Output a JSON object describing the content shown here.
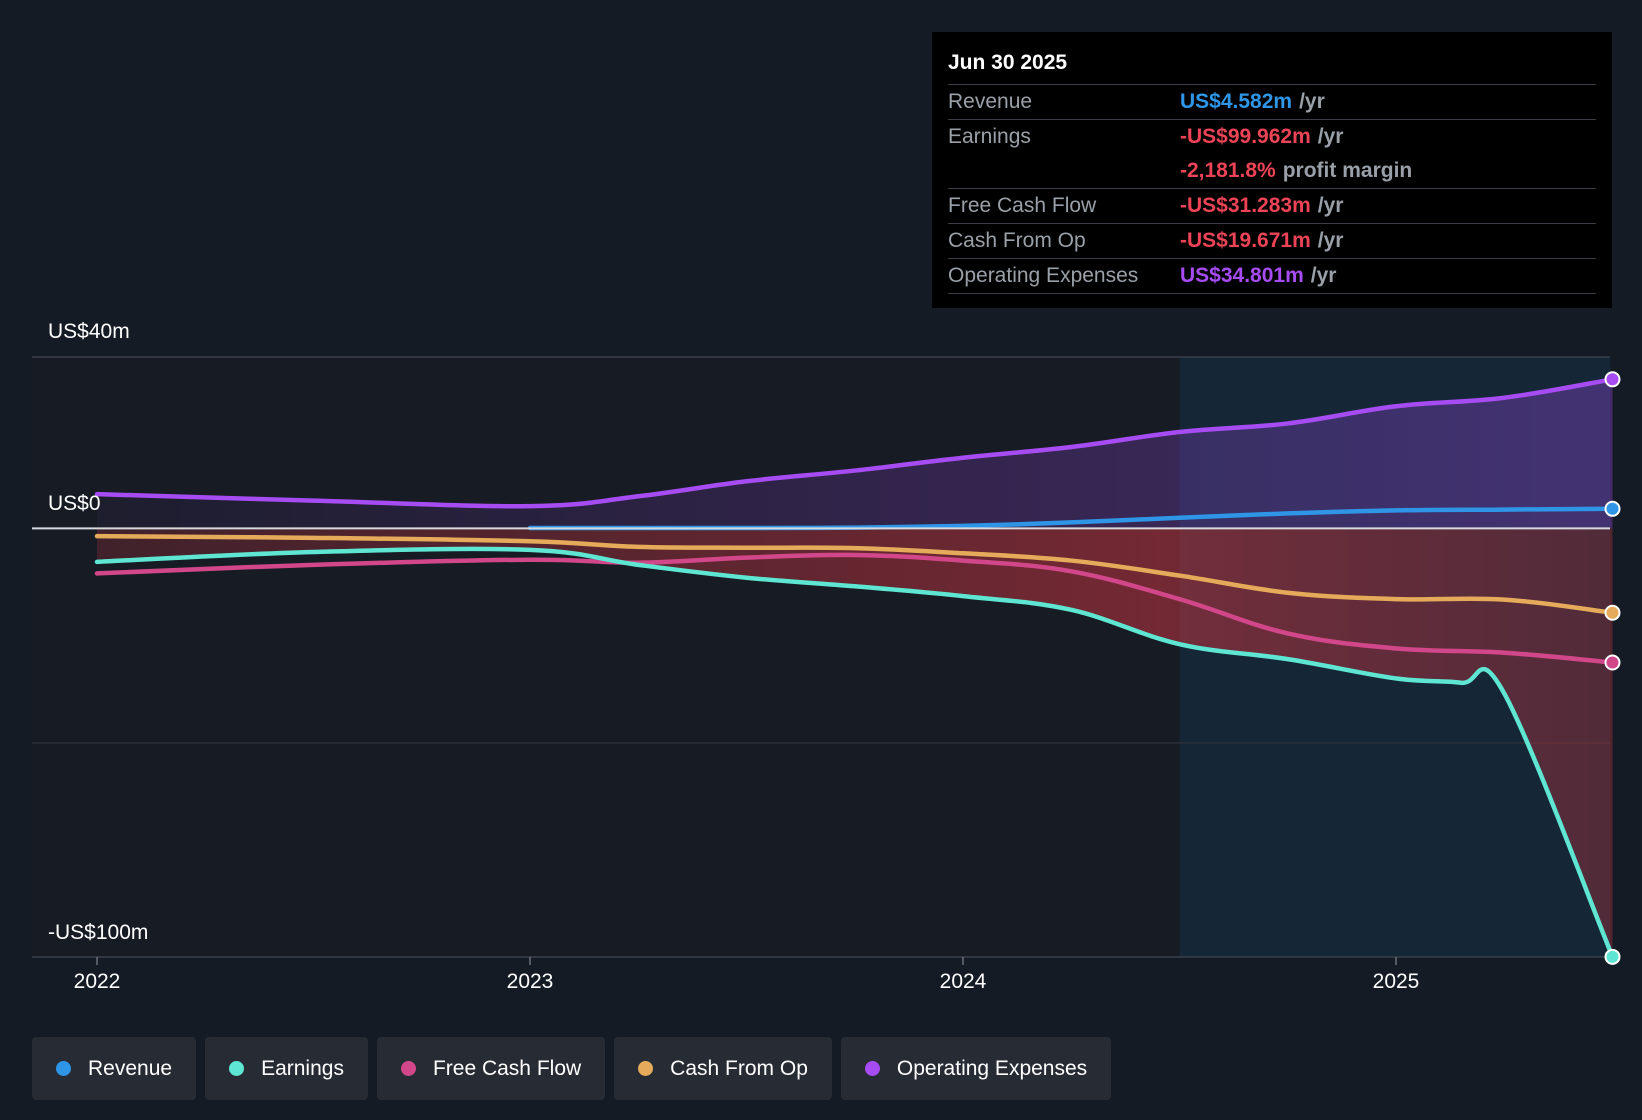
{
  "tooltip": {
    "date": "Jun 30 2025",
    "rows": {
      "revenue": {
        "label": "Revenue",
        "value": "US$4.582m",
        "unit": "/yr"
      },
      "earnings": {
        "label": "Earnings",
        "value": "-US$99.962m",
        "unit": "/yr"
      },
      "margin": {
        "value": "-2,181.8%",
        "unit": "profit margin"
      },
      "fcf": {
        "label": "Free Cash Flow",
        "value": "-US$31.283m",
        "unit": "/yr"
      },
      "cfo": {
        "label": "Cash From Op",
        "value": "-US$19.671m",
        "unit": "/yr"
      },
      "opex": {
        "label": "Operating Expenses",
        "value": "US$34.801m",
        "unit": "/yr"
      }
    }
  },
  "legend": [
    {
      "label": "Revenue",
      "color": "#2f95e6"
    },
    {
      "label": "Earnings",
      "color": "#5ee6d2"
    },
    {
      "label": "Free Cash Flow",
      "color": "#d2478a"
    },
    {
      "label": "Cash From Op",
      "color": "#e5ab5a"
    },
    {
      "label": "Operating Expenses",
      "color": "#a64cf2"
    }
  ],
  "chart_data": {
    "type": "line",
    "title": "",
    "xlabel": "",
    "ylabel": "",
    "ylim": [
      -100,
      40
    ],
    "y_tick_labels": {
      "top": "US$40m",
      "zero": "US$0",
      "bottom": "-US$100m"
    },
    "x_tick_labels": [
      "2022",
      "2023",
      "2024",
      "2025"
    ],
    "x_range": [
      2021.8,
      2025.5
    ],
    "past_data_start": 2024.5,
    "series": [
      {
        "name": "Operating Expenses",
        "color": "#a64cf2",
        "x": [
          2022.0,
          2022.5,
          2023.0,
          2023.25,
          2023.5,
          2023.75,
          2024.0,
          2024.25,
          2024.5,
          2024.75,
          2025.0,
          2025.25,
          2025.5
        ],
        "values": [
          8,
          6.5,
          5.2,
          7.5,
          11,
          13.5,
          16.5,
          19,
          22.5,
          24.5,
          28.5,
          30.5,
          34.8
        ]
      },
      {
        "name": "Revenue",
        "color": "#2f95e6",
        "x": [
          2023.0,
          2023.5,
          2023.75,
          2024.0,
          2024.25,
          2024.5,
          2024.75,
          2025.0,
          2025.25,
          2025.5
        ],
        "values": [
          0.1,
          0.1,
          0.2,
          0.6,
          1.4,
          2.5,
          3.5,
          4.2,
          4.4,
          4.582
        ]
      },
      {
        "name": "Cash From Op",
        "color": "#e5ab5a",
        "x": [
          2022.0,
          2022.5,
          2023.0,
          2023.25,
          2023.5,
          2023.75,
          2024.0,
          2024.25,
          2024.5,
          2024.75,
          2025.0,
          2025.25,
          2025.5
        ],
        "values": [
          -1.8,
          -2.2,
          -3,
          -4.3,
          -4.5,
          -4.6,
          -5.8,
          -7.5,
          -11,
          -15,
          -16.5,
          -16.6,
          -19.671
        ]
      },
      {
        "name": "Free Cash Flow",
        "color": "#d2478a",
        "x": [
          2022.0,
          2022.5,
          2023.0,
          2023.25,
          2023.5,
          2023.75,
          2024.0,
          2024.25,
          2024.5,
          2024.75,
          2025.0,
          2025.25,
          2025.5
        ],
        "values": [
          -10.5,
          -8.5,
          -7.3,
          -8,
          -6.8,
          -6.2,
          -7.5,
          -10,
          -16.5,
          -24.5,
          -28,
          -29,
          -31.283
        ]
      },
      {
        "name": "Earnings",
        "color": "#5ee6d2",
        "x": [
          2022.0,
          2022.5,
          2023.0,
          2023.25,
          2023.5,
          2023.75,
          2024.0,
          2024.25,
          2024.5,
          2024.75,
          2025.0,
          2025.15,
          2025.25,
          2025.5
        ],
        "values": [
          -7.8,
          -5.5,
          -5,
          -8.5,
          -11.5,
          -13.5,
          -15.8,
          -19,
          -27,
          -30.5,
          -35,
          -36,
          -38.5,
          -99.962
        ]
      }
    ]
  }
}
